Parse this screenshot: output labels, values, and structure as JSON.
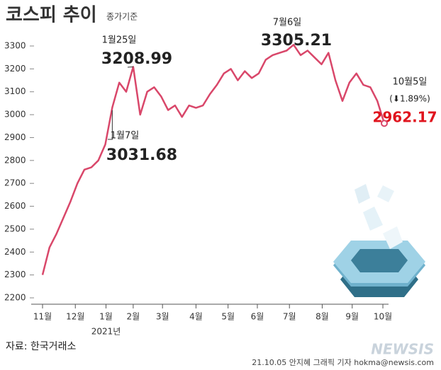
{
  "chart_data": {
    "type": "line",
    "title": "코스피 추이",
    "subtitle": "종가기준",
    "color": "#d9476a",
    "values": [
      2300,
      2420,
      2480,
      2550,
      2620,
      2700,
      2760,
      2770,
      2800,
      2870,
      3031.68,
      3140,
      3100,
      3208.99,
      3000,
      3100,
      3120,
      3080,
      3020,
      3040,
      2990,
      3040,
      3030,
      3040,
      3090,
      3130,
      3180,
      3200,
      3150,
      3190,
      3160,
      3180,
      3240,
      3260,
      3270,
      3280,
      3305.21,
      3260,
      3280,
      3250,
      3220,
      3270,
      3150,
      3060,
      3140,
      3180,
      3130,
      3120,
      3060,
      2962.17
    ],
    "xlim": [
      0,
      49
    ],
    "xticks": [
      {
        "value": 0,
        "label": "11월"
      },
      {
        "value": 4.7,
        "label": "12월"
      },
      {
        "value": 9.1,
        "label": "1월"
      },
      {
        "value": 13,
        "label": "2월"
      },
      {
        "value": 17.2,
        "label": "3월"
      },
      {
        "value": 22,
        "label": "4월"
      },
      {
        "value": 26.6,
        "label": "5월"
      },
      {
        "value": 30.8,
        "label": "6월"
      },
      {
        "value": 35.4,
        "label": "7월"
      },
      {
        "value": 40.1,
        "label": "8월"
      },
      {
        "value": 44.4,
        "label": "9월"
      },
      {
        "value": 48.8,
        "label": "10월"
      }
    ],
    "year_label": "2021년",
    "ylim": [
      2200,
      3300
    ],
    "yticks": [
      2200,
      2300,
      2400,
      2500,
      2600,
      2700,
      2800,
      2900,
      3000,
      3100,
      3200,
      3300
    ],
    "annotations": [
      {
        "index": 13,
        "date": "1월25일",
        "value_label": "3208.99"
      },
      {
        "index": 10,
        "date": "1월7일",
        "value_label": "3031.68"
      },
      {
        "index": 36,
        "date": "7월6일",
        "value_label": "3305.21"
      },
      {
        "index": 49,
        "date": "10월5일",
        "change": "(⬇1.89%)",
        "value_label": "2962.17"
      }
    ],
    "source": "자료: 한국거래소",
    "credit": "21.10.05 안지혜 그래픽 기자 hokma@newsis.com",
    "logo": "NEWSIS"
  }
}
